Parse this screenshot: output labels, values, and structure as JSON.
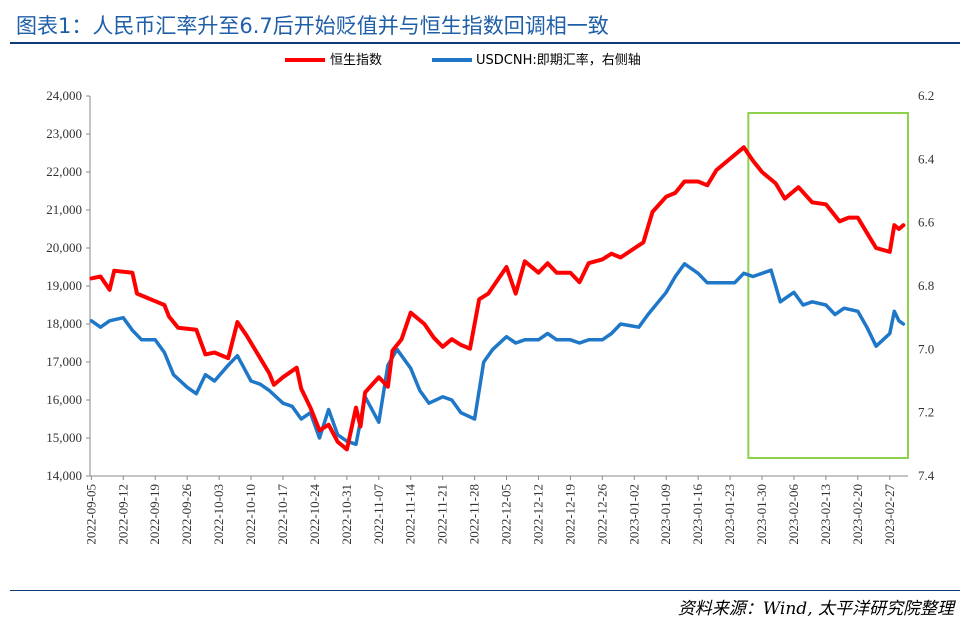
{
  "title": "图表1：人民币汇率升至6.7后开始贬值并与恒生指数回调相一致",
  "source": "资料来源：Wind, 太平洋研究院整理",
  "colors": {
    "hsi": "#ff0000",
    "usdcnh": "#1f77c8",
    "highlight": "#8ed14f",
    "title": "#1f5fa8",
    "rule": "#0f3c78"
  },
  "chart_data": {
    "type": "line",
    "legend": {
      "placement": "top-center",
      "entries": [
        "恒生指数",
        "USDCNH:即期汇率，右侧轴"
      ]
    },
    "x_tick_labels": [
      "2022-09-05",
      "2022-09-12",
      "2022-09-19",
      "2022-09-26",
      "2022-10-03",
      "2022-10-10",
      "2022-10-17",
      "2022-10-24",
      "2022-10-31",
      "2022-11-07",
      "2022-11-14",
      "2022-11-21",
      "2022-11-28",
      "2022-12-05",
      "2022-12-12",
      "2022-12-19",
      "2022-12-26",
      "2023-01-02",
      "2023-01-09",
      "2023-01-16",
      "2023-01-23",
      "2023-01-30",
      "2023-02-06",
      "2023-02-13",
      "2023-02-20",
      "2023-02-27"
    ],
    "y_left": {
      "ylim": [
        14000,
        24000
      ],
      "ticks": [
        "14,000",
        "15,000",
        "16,000",
        "17,000",
        "18,000",
        "19,000",
        "20,000",
        "21,000",
        "22,000",
        "23,000",
        "24,000"
      ]
    },
    "y_right": {
      "ylim": [
        6.2,
        7.4
      ],
      "inverted": true,
      "ticks": [
        "6.2",
        "6.4",
        "6.6",
        "6.8",
        "7.0",
        "7.2",
        "7.4"
      ]
    },
    "highlight_range": [
      "2023-01-27",
      "2023-03-03"
    ],
    "series": [
      {
        "name": "恒生指数",
        "axis": "left",
        "points": [
          [
            "2022-09-05",
            19200
          ],
          [
            "2022-09-07",
            19250
          ],
          [
            "2022-09-09",
            18900
          ],
          [
            "2022-09-10",
            19400
          ],
          [
            "2022-09-14",
            19350
          ],
          [
            "2022-09-15",
            18800
          ],
          [
            "2022-09-17",
            18700
          ],
          [
            "2022-09-19",
            18600
          ],
          [
            "2022-09-21",
            18500
          ],
          [
            "2022-09-22",
            18200
          ],
          [
            "2022-09-24",
            17900
          ],
          [
            "2022-09-28",
            17850
          ],
          [
            "2022-09-30",
            17200
          ],
          [
            "2022-10-02",
            17250
          ],
          [
            "2022-10-05",
            17100
          ],
          [
            "2022-10-07",
            18050
          ],
          [
            "2022-10-09",
            17700
          ],
          [
            "2022-10-12",
            17100
          ],
          [
            "2022-10-14",
            16700
          ],
          [
            "2022-10-15",
            16400
          ],
          [
            "2022-10-17",
            16600
          ],
          [
            "2022-10-20",
            16850
          ],
          [
            "2022-10-21",
            16300
          ],
          [
            "2022-10-23",
            15800
          ],
          [
            "2022-10-25",
            15200
          ],
          [
            "2022-10-27",
            15350
          ],
          [
            "2022-10-29",
            14900
          ],
          [
            "2022-10-31",
            14700
          ],
          [
            "2022-11-02",
            15800
          ],
          [
            "2022-11-03",
            15300
          ],
          [
            "2022-11-04",
            16200
          ],
          [
            "2022-11-07",
            16600
          ],
          [
            "2022-11-09",
            16350
          ],
          [
            "2022-11-10",
            17300
          ],
          [
            "2022-11-12",
            17600
          ],
          [
            "2022-11-14",
            18300
          ],
          [
            "2022-11-17",
            18000
          ],
          [
            "2022-11-19",
            17650
          ],
          [
            "2022-11-21",
            17400
          ],
          [
            "2022-11-23",
            17600
          ],
          [
            "2022-11-25",
            17450
          ],
          [
            "2022-11-27",
            17350
          ],
          [
            "2022-11-29",
            18650
          ],
          [
            "2022-12-01",
            18800
          ],
          [
            "2022-12-05",
            19500
          ],
          [
            "2022-12-07",
            18800
          ],
          [
            "2022-12-09",
            19650
          ],
          [
            "2022-12-12",
            19350
          ],
          [
            "2022-12-14",
            19600
          ],
          [
            "2022-12-16",
            19350
          ],
          [
            "2022-12-19",
            19350
          ],
          [
            "2022-12-21",
            19100
          ],
          [
            "2022-12-23",
            19600
          ],
          [
            "2022-12-26",
            19700
          ],
          [
            "2022-12-28",
            19850
          ],
          [
            "2022-12-30",
            19750
          ],
          [
            "2023-01-04",
            20150
          ],
          [
            "2023-01-06",
            20950
          ],
          [
            "2023-01-09",
            21350
          ],
          [
            "2023-01-11",
            21450
          ],
          [
            "2023-01-13",
            21750
          ],
          [
            "2023-01-16",
            21750
          ],
          [
            "2023-01-18",
            21650
          ],
          [
            "2023-01-20",
            22050
          ],
          [
            "2023-01-26",
            22650
          ],
          [
            "2023-01-28",
            22300
          ],
          [
            "2023-01-30",
            22000
          ],
          [
            "2023-02-02",
            21700
          ],
          [
            "2023-02-04",
            21300
          ],
          [
            "2023-02-07",
            21600
          ],
          [
            "2023-02-10",
            21200
          ],
          [
            "2023-02-13",
            21150
          ],
          [
            "2023-02-16",
            20700
          ],
          [
            "2023-02-18",
            20800
          ],
          [
            "2023-02-20",
            20800
          ],
          [
            "2023-02-22",
            20400
          ],
          [
            "2023-02-24",
            20000
          ],
          [
            "2023-02-27",
            19900
          ],
          [
            "2023-02-28",
            20600
          ],
          [
            "2023-03-01",
            20500
          ],
          [
            "2023-03-02",
            20600
          ]
        ]
      },
      {
        "name": "USDCNH:即期汇率，右侧轴",
        "axis": "right",
        "points": [
          [
            "2022-09-05",
            6.91
          ],
          [
            "2022-09-07",
            6.93
          ],
          [
            "2022-09-09",
            6.91
          ],
          [
            "2022-09-12",
            6.9
          ],
          [
            "2022-09-14",
            6.94
          ],
          [
            "2022-09-16",
            6.97
          ],
          [
            "2022-09-19",
            6.97
          ],
          [
            "2022-09-21",
            7.01
          ],
          [
            "2022-09-23",
            7.08
          ],
          [
            "2022-09-26",
            7.12
          ],
          [
            "2022-09-28",
            7.14
          ],
          [
            "2022-09-30",
            7.08
          ],
          [
            "2022-10-02",
            7.1
          ],
          [
            "2022-10-05",
            7.05
          ],
          [
            "2022-10-07",
            7.02
          ],
          [
            "2022-10-10",
            7.1
          ],
          [
            "2022-10-12",
            7.11
          ],
          [
            "2022-10-14",
            7.13
          ],
          [
            "2022-10-17",
            7.17
          ],
          [
            "2022-10-19",
            7.18
          ],
          [
            "2022-10-21",
            7.22
          ],
          [
            "2022-10-23",
            7.2
          ],
          [
            "2022-10-25",
            7.28
          ],
          [
            "2022-10-27",
            7.19
          ],
          [
            "2022-10-29",
            7.27
          ],
          [
            "2022-10-31",
            7.29
          ],
          [
            "2022-11-02",
            7.3
          ],
          [
            "2022-11-04",
            7.15
          ],
          [
            "2022-11-07",
            7.23
          ],
          [
            "2022-11-09",
            7.05
          ],
          [
            "2022-11-11",
            7.0
          ],
          [
            "2022-11-14",
            7.06
          ],
          [
            "2022-11-16",
            7.13
          ],
          [
            "2022-11-18",
            7.17
          ],
          [
            "2022-11-21",
            7.15
          ],
          [
            "2022-11-23",
            7.16
          ],
          [
            "2022-11-25",
            7.2
          ],
          [
            "2022-11-28",
            7.22
          ],
          [
            "2022-11-30",
            7.04
          ],
          [
            "2022-12-02",
            7.0
          ],
          [
            "2022-12-05",
            6.96
          ],
          [
            "2022-12-07",
            6.98
          ],
          [
            "2022-12-09",
            6.97
          ],
          [
            "2022-12-12",
            6.97
          ],
          [
            "2022-12-14",
            6.95
          ],
          [
            "2022-12-16",
            6.97
          ],
          [
            "2022-12-19",
            6.97
          ],
          [
            "2022-12-21",
            6.98
          ],
          [
            "2022-12-23",
            6.97
          ],
          [
            "2022-12-26",
            6.97
          ],
          [
            "2022-12-28",
            6.95
          ],
          [
            "2022-12-30",
            6.92
          ],
          [
            "2023-01-03",
            6.93
          ],
          [
            "2023-01-05",
            6.89
          ],
          [
            "2023-01-09",
            6.82
          ],
          [
            "2023-01-11",
            6.77
          ],
          [
            "2023-01-13",
            6.73
          ],
          [
            "2023-01-16",
            6.76
          ],
          [
            "2023-01-18",
            6.79
          ],
          [
            "2023-01-20",
            6.79
          ],
          [
            "2023-01-24",
            6.79
          ],
          [
            "2023-01-26",
            6.76
          ],
          [
            "2023-01-28",
            6.77
          ],
          [
            "2023-02-01",
            6.75
          ],
          [
            "2023-02-03",
            6.85
          ],
          [
            "2023-02-06",
            6.82
          ],
          [
            "2023-02-08",
            6.86
          ],
          [
            "2023-02-10",
            6.85
          ],
          [
            "2023-02-13",
            6.86
          ],
          [
            "2023-02-15",
            6.89
          ],
          [
            "2023-02-17",
            6.87
          ],
          [
            "2023-02-20",
            6.88
          ],
          [
            "2023-02-22",
            6.93
          ],
          [
            "2023-02-24",
            6.99
          ],
          [
            "2023-02-27",
            6.95
          ],
          [
            "2023-02-28",
            6.88
          ],
          [
            "2023-03-01",
            6.91
          ],
          [
            "2023-03-02",
            6.92
          ]
        ]
      }
    ]
  }
}
